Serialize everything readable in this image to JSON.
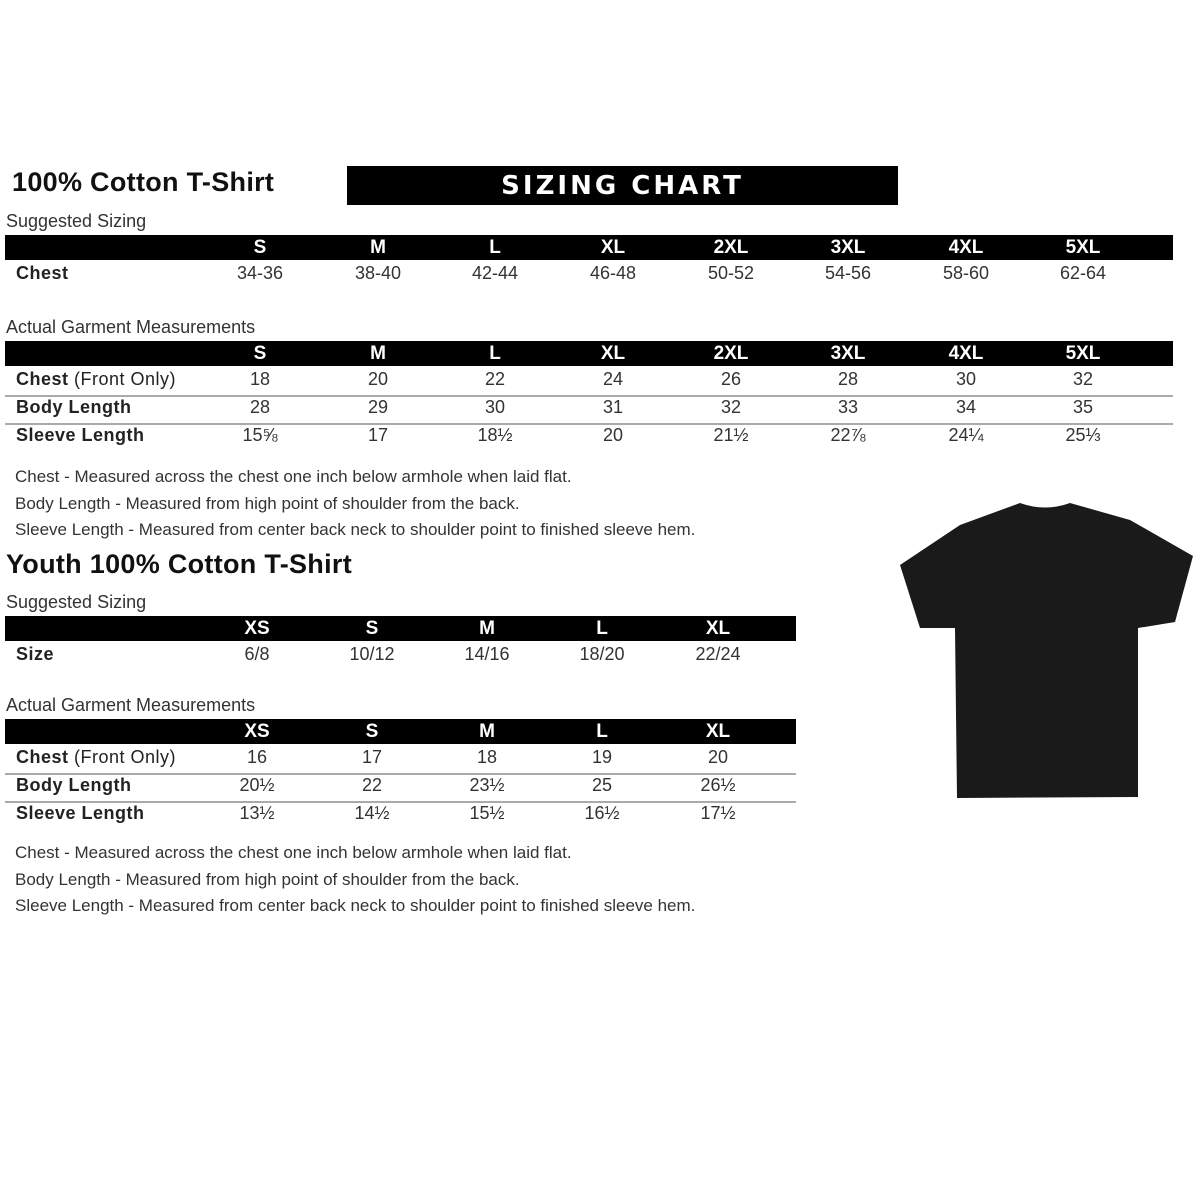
{
  "adult": {
    "title": "100% Cotton T-Shirt",
    "banner": "SIZING CHART",
    "suggested_label": "Suggested Sizing",
    "sizes": [
      "S",
      "M",
      "L",
      "XL",
      "2XL",
      "3XL",
      "4XL",
      "5XL"
    ],
    "suggested_rows": [
      {
        "label": "Chest",
        "label_extra": "",
        "values": [
          "34-36",
          "38-40",
          "42-44",
          "46-48",
          "50-52",
          "54-56",
          "58-60",
          "62-64"
        ]
      }
    ],
    "measure_label": "Actual Garment Measurements",
    "measure_rows": [
      {
        "label": "Chest",
        "label_extra": " (Front Only)",
        "values": [
          "18",
          "20",
          "22",
          "24",
          "26",
          "28",
          "30",
          "32"
        ]
      },
      {
        "label": "Body Length",
        "label_extra": "",
        "values": [
          "28",
          "29",
          "30",
          "31",
          "32",
          "33",
          "34",
          "35"
        ]
      },
      {
        "label": "Sleeve Length",
        "label_extra": "",
        "values": [
          "15⅝",
          "17",
          "18½",
          "20",
          "21½",
          "22⅞",
          "24¼",
          "25⅓"
        ]
      }
    ],
    "notes": [
      "Chest - Measured across the chest one inch below armhole when laid flat.",
      "Body Length - Measured from high point of shoulder from the back.",
      "Sleeve Length - Measured from center back neck to shoulder point to finished sleeve hem."
    ]
  },
  "youth": {
    "title": "Youth 100% Cotton T-Shirt",
    "suggested_label": "Suggested Sizing",
    "sizes": [
      "XS",
      "S",
      "M",
      "L",
      "XL"
    ],
    "suggested_rows": [
      {
        "label": "Size",
        "label_extra": "",
        "values": [
          "6/8",
          "10/12",
          "14/16",
          "18/20",
          "22/24"
        ]
      }
    ],
    "measure_label": "Actual Garment Measurements",
    "measure_rows": [
      {
        "label": "Chest",
        "label_extra": " (Front Only)",
        "values": [
          "16",
          "17",
          "18",
          "19",
          "20"
        ]
      },
      {
        "label": "Body Length",
        "label_extra": "",
        "values": [
          "20½",
          "22",
          "23½",
          "25",
          "26½"
        ]
      },
      {
        "label": "Sleeve Length",
        "label_extra": "",
        "values": [
          "13½",
          "14½",
          "15½",
          "16½",
          "17½"
        ]
      }
    ],
    "notes": [
      "Chest - Measured across the chest one inch below armhole when laid flat.",
      "Body Length - Measured from high point of shoulder from the back.",
      "Sleeve Length - Measured from center back neck to shoulder point to finished sleeve hem."
    ]
  },
  "image": {
    "icon": "tshirt-icon",
    "color": "#1a1a1a"
  }
}
